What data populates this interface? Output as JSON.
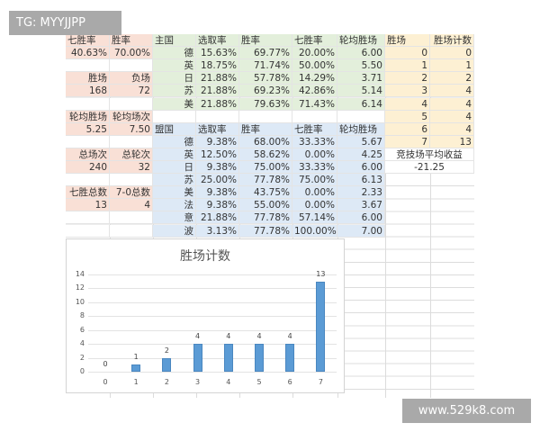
{
  "watermarks": {
    "top_left": "TG: MYYJJPP",
    "bottom_right": "www.529k8.com"
  },
  "summary": {
    "rows": [
      [
        "七胜率",
        "胜率"
      ],
      [
        "40.63%",
        "70.00%"
      ],
      [
        "",
        ""
      ],
      [
        "胜场",
        "负场"
      ],
      [
        "168",
        "72"
      ],
      [
        "",
        ""
      ],
      [
        "轮均胜场",
        "轮均场次"
      ],
      [
        "5.25",
        "7.50"
      ],
      [
        "",
        ""
      ],
      [
        "总场次",
        "总轮次"
      ],
      [
        "240",
        "32"
      ],
      [
        "",
        ""
      ],
      [
        "七胜总数",
        "7-0总数"
      ],
      [
        "13",
        "4"
      ]
    ]
  },
  "main_nations": {
    "header": [
      "主国",
      "选取率",
      "胜率",
      "七胜率",
      "轮均胜场"
    ],
    "rows": [
      [
        "德",
        "15.63%",
        "69.77%",
        "20.00%",
        "6.00"
      ],
      [
        "英",
        "18.75%",
        "71.74%",
        "50.00%",
        "5.50"
      ],
      [
        "日",
        "21.88%",
        "57.78%",
        "14.29%",
        "3.71"
      ],
      [
        "苏",
        "21.88%",
        "69.23%",
        "42.86%",
        "5.14"
      ],
      [
        "美",
        "21.88%",
        "79.63%",
        "71.43%",
        "6.14"
      ]
    ]
  },
  "allied_nations": {
    "header": [
      "盟国",
      "选取率",
      "胜率",
      "七胜率",
      "轮均胜场"
    ],
    "rows": [
      [
        "德",
        "9.38%",
        "68.00%",
        "33.33%",
        "5.67"
      ],
      [
        "英",
        "12.50%",
        "58.62%",
        "0.00%",
        "4.25"
      ],
      [
        "日",
        "9.38%",
        "75.00%",
        "33.33%",
        "6.00"
      ],
      [
        "苏",
        "25.00%",
        "77.78%",
        "75.00%",
        "6.13"
      ],
      [
        "美",
        "9.38%",
        "43.75%",
        "0.00%",
        "2.33"
      ],
      [
        "法",
        "9.38%",
        "55.00%",
        "0.00%",
        "3.67"
      ],
      [
        "意",
        "21.88%",
        "77.78%",
        "57.14%",
        "6.00"
      ],
      [
        "波",
        "3.13%",
        "77.78%",
        "100.00%",
        "7.00"
      ]
    ]
  },
  "wins_count": {
    "header": [
      "胜场",
      "胜场计数"
    ],
    "rows": [
      [
        "0",
        "0"
      ],
      [
        "1",
        "1"
      ],
      [
        "2",
        "2"
      ],
      [
        "3",
        "4"
      ],
      [
        "4",
        "4"
      ],
      [
        "5",
        "4"
      ],
      [
        "6",
        "4"
      ],
      [
        "7",
        "13"
      ]
    ]
  },
  "arena": {
    "label": "竞技场平均收益",
    "value": "-21.25"
  },
  "colors": {
    "summary": "#f9e0d6",
    "main": "#e3efdb",
    "allied": "#dde9f6",
    "wins": "#fdf0d3",
    "bar": "#5b9bd5"
  },
  "chart_data": {
    "type": "bar",
    "title": "胜场计数",
    "categories": [
      "0",
      "1",
      "2",
      "3",
      "4",
      "5",
      "6",
      "7"
    ],
    "values": [
      0,
      1,
      2,
      4,
      4,
      4,
      4,
      13
    ],
    "data_labels": true,
    "yticks": [
      "0",
      "2",
      "4",
      "6",
      "8",
      "10",
      "12",
      "14"
    ],
    "ylim": [
      0,
      14
    ],
    "grid": true,
    "xlabel": "",
    "ylabel": ""
  }
}
